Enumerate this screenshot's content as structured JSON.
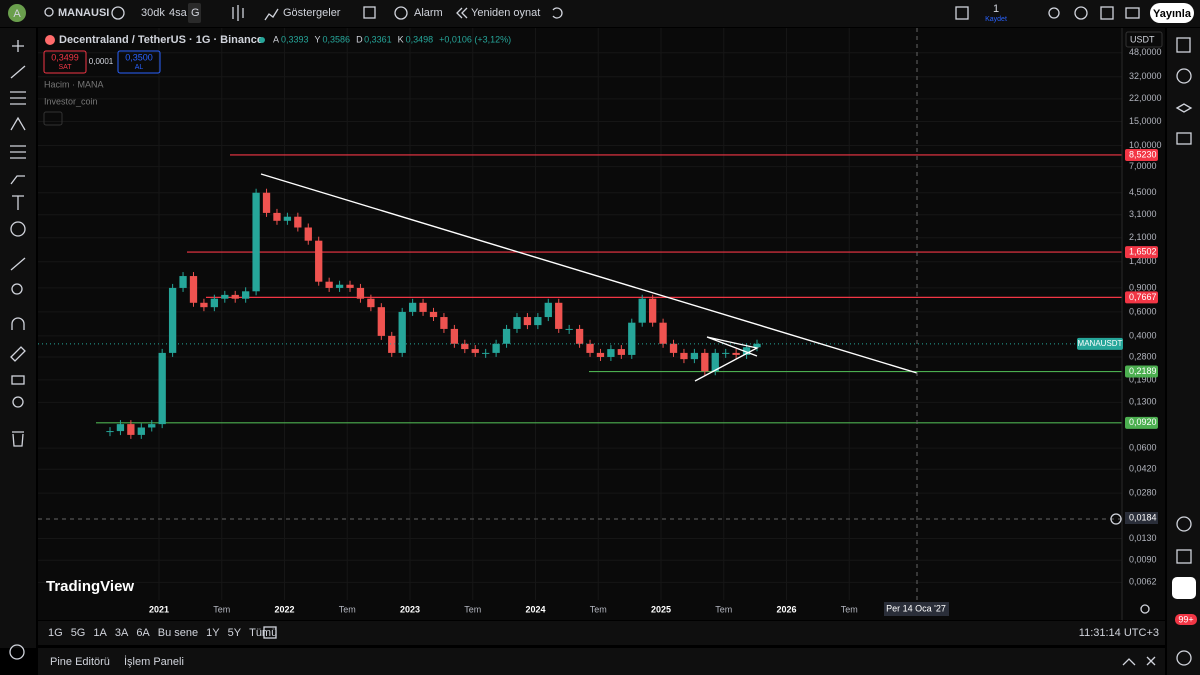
{
  "topbar": {
    "avatar": "A",
    "symbol": "MANAUSI",
    "intervals": [
      "30dk",
      "4sa",
      "G"
    ],
    "indicators": "Göstergeler",
    "alarm": "Alarm",
    "replay": "Yeniden oynat",
    "save_count": "1",
    "save": "Kaydet",
    "publish": "Yayınla"
  },
  "legend": {
    "title": "Decentraland / TetherUS · 1G · Binance",
    "ohlc": [
      [
        "A",
        "0,3393"
      ],
      [
        "Y",
        "0,3586"
      ],
      [
        "D",
        "0,3361"
      ],
      [
        "K",
        "0,3498"
      ]
    ],
    "change": "+0,0106 (+3,12%)",
    "sell_price": "0,3499",
    "sell": "SAT",
    "spread": "0,0001",
    "buy_price": "0,3500",
    "buy": "AL",
    "studies": [
      "Hacim · MANA",
      "Investor_coin"
    ]
  },
  "chart": {
    "currency": "USDT",
    "log_scale": true,
    "ylim": [
      0.0046,
      67
    ],
    "yticks": [
      {
        "value": 48,
        "label": "48,0000"
      },
      {
        "value": 32,
        "label": "32,0000"
      },
      {
        "value": 22,
        "label": "22,0000"
      },
      {
        "value": 15,
        "label": "15,0000"
      },
      {
        "value": 10,
        "label": "10,0000"
      },
      {
        "value": 7,
        "label": "7,0000"
      },
      {
        "value": 4.5,
        "label": "4,5000"
      },
      {
        "value": 3.1,
        "label": "3,1000"
      },
      {
        "value": 2.1,
        "label": "2,1000"
      },
      {
        "value": 1.4,
        "label": "1,4000"
      },
      {
        "value": 0.9,
        "label": "0,9000"
      },
      {
        "value": 0.6,
        "label": "0,6000"
      },
      {
        "value": 0.4,
        "label": "0,4000"
      },
      {
        "value": 0.28,
        "label": "0,2800"
      },
      {
        "value": 0.19,
        "label": "0,1900"
      },
      {
        "value": 0.13,
        "label": "0,1300"
      },
      {
        "value": 0.06,
        "label": "0,0600"
      },
      {
        "value": 0.042,
        "label": "0,0420"
      },
      {
        "value": 0.028,
        "label": "0,0280"
      },
      {
        "value": 0.013,
        "label": "0,0130"
      },
      {
        "value": 0.009,
        "label": "0,0090"
      },
      {
        "value": 0.0062,
        "label": "0,0062"
      }
    ],
    "levels": [
      {
        "value": 8.523,
        "label": "8,5230",
        "color": "#f23645"
      },
      {
        "value": 1.6502,
        "label": "1,6502",
        "color": "#f23645"
      },
      {
        "value": 0.7667,
        "label": "0,7667",
        "color": "#f23645"
      },
      {
        "value": 0.2189,
        "label": "0,2189",
        "color": "#4caf50"
      },
      {
        "value": 0.092,
        "label": "0,0920",
        "color": "#4caf50"
      }
    ],
    "last": {
      "name": "MANAUSDT",
      "value": 0.3498,
      "color": "#26a69a"
    },
    "crosshair": {
      "value": 0.0184,
      "label": "0,0184",
      "date": "Per 14 Oca '27"
    },
    "xticks": [
      "2021",
      "Tem",
      "2022",
      "Tem",
      "2023",
      "Tem",
      "2024",
      "Tem",
      "2025",
      "Tem",
      "2026",
      "Tem"
    ],
    "price": {
      "values": [
        0.08,
        0.09,
        0.075,
        0.085,
        0.09,
        0.3,
        0.9,
        1.1,
        0.7,
        0.65,
        0.75,
        0.8,
        0.75,
        0.85,
        4.5,
        3.2,
        2.8,
        3.0,
        2.5,
        2.0,
        1.0,
        0.9,
        0.95,
        0.9,
        0.75,
        0.65,
        0.4,
        0.3,
        0.6,
        0.7,
        0.6,
        0.55,
        0.45,
        0.35,
        0.32,
        0.3,
        0.3,
        0.35,
        0.45,
        0.55,
        0.48,
        0.55,
        0.7,
        0.45,
        0.45,
        0.35,
        0.3,
        0.28,
        0.32,
        0.29,
        0.5,
        0.75,
        0.5,
        0.35,
        0.3,
        0.27,
        0.3,
        0.22,
        0.3,
        0.3,
        0.29,
        0.33,
        0.35
      ]
    },
    "logo": "TradingView"
  },
  "bottombar": {
    "ranges": [
      "1G",
      "5G",
      "1A",
      "3A",
      "6A",
      "Bu sene",
      "1Y",
      "5Y",
      "Tümü"
    ],
    "clock": "11:31:14 UTC+3"
  },
  "footer": {
    "tabs": [
      "Pine Editörü",
      "İşlem Paneli"
    ],
    "badge": "99+"
  }
}
